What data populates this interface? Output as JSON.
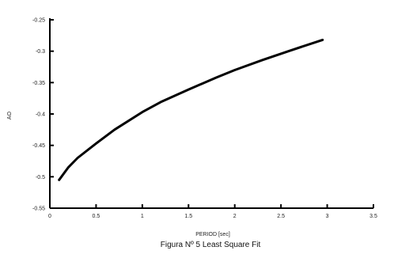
{
  "chart_data": {
    "type": "line",
    "xlabel": "PERIOD [sec]",
    "ylabel": "AO",
    "caption": "Figura Nº 5 Least Square Fit",
    "xlim": [
      0,
      3.5
    ],
    "ylim": [
      -0.55,
      -0.25
    ],
    "x_ticks": [
      "0",
      "0.5",
      "1",
      "1.5",
      "2",
      "2.5",
      "3",
      "3.5"
    ],
    "y_ticks": [
      "-0.25",
      "-0.3",
      "-0.35",
      "-0.4",
      "-0.45",
      "-0.5",
      "-0.55"
    ],
    "grid": false,
    "series": [
      {
        "color": "#000000",
        "x": [
          0.1,
          0.2,
          0.3,
          0.5,
          0.7,
          1.0,
          1.2,
          1.5,
          1.8,
          2.0,
          2.3,
          2.6,
          2.95
        ],
        "values": [
          -0.505,
          -0.485,
          -0.47,
          -0.447,
          -0.425,
          -0.397,
          -0.381,
          -0.361,
          -0.342,
          -0.33,
          -0.314,
          -0.299,
          -0.282
        ]
      }
    ]
  }
}
